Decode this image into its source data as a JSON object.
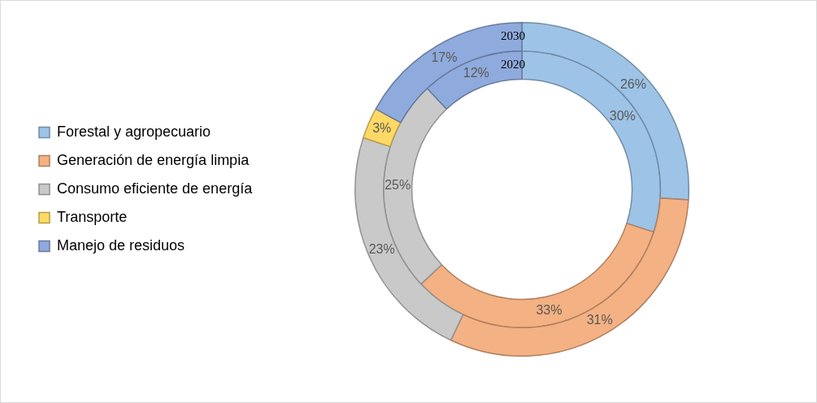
{
  "chart_data": {
    "type": "donut",
    "categories": [
      "Forestal y agropecuario",
      "Generación de energía limpia",
      "Consumo eficiente de energía",
      "Transporte",
      "Manejo de residuos"
    ],
    "colors": [
      "#9dc3e6",
      "#f4b183",
      "#c9c9c9",
      "#ffd966",
      "#8faadc"
    ],
    "legend": "left",
    "series": [
      {
        "name": "2030",
        "values": [
          26,
          31,
          23,
          3,
          17
        ],
        "value_labels": [
          "26%",
          "31%",
          "23%",
          "3%",
          "17%"
        ]
      },
      {
        "name": "2020",
        "values": [
          30,
          33,
          25,
          0,
          12
        ],
        "value_labels": [
          "30%",
          "33%",
          "25%",
          null,
          "12%"
        ]
      }
    ]
  }
}
